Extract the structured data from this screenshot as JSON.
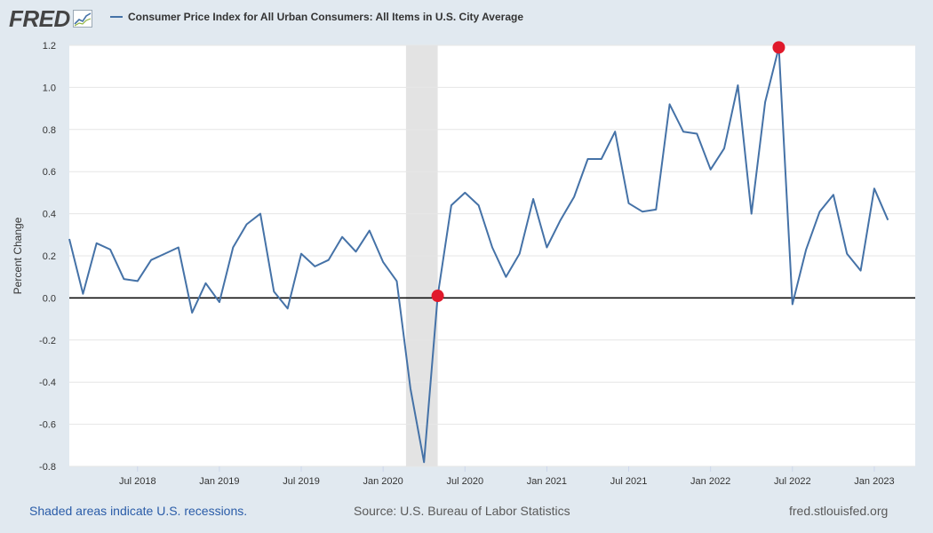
{
  "header": {
    "logo_text": "FRED",
    "logo_icon": "chart-trend-icon",
    "legend_label": "Consumer Price Index for All Urban Consumers: All Items in U.S. City Average"
  },
  "footer": {
    "recession_note": "Shaded areas indicate U.S. recessions.",
    "source": "Source: U.S. Bureau of Labor Statistics",
    "site": "fred.stlouisfed.org"
  },
  "colors": {
    "series": "#4572a7",
    "marker": "#e0192b",
    "recession": "#e3e3e3",
    "background": "#e1e9f0",
    "plot": "#ffffff"
  },
  "chart_data": {
    "type": "line",
    "ylabel": "Percent Change",
    "ylim": [
      -0.8,
      1.2
    ],
    "yticks": [
      "1.2",
      "1.0",
      "0.8",
      "0.6",
      "0.4",
      "0.2",
      "0.0",
      "-0.2",
      "-0.4",
      "-0.6",
      "-0.8"
    ],
    "xlim": [
      "2018-02",
      "2023-04"
    ],
    "xticks": [
      {
        "date": "2018-07",
        "label": "Jul 2018"
      },
      {
        "date": "2019-01",
        "label": "Jan 2019"
      },
      {
        "date": "2019-07",
        "label": "Jul 2019"
      },
      {
        "date": "2020-01",
        "label": "Jan 2020"
      },
      {
        "date": "2020-07",
        "label": "Jul 2020"
      },
      {
        "date": "2021-01",
        "label": "Jan 2021"
      },
      {
        "date": "2021-07",
        "label": "Jul 2021"
      },
      {
        "date": "2022-01",
        "label": "Jan 2022"
      },
      {
        "date": "2022-07",
        "label": "Jul 2022"
      },
      {
        "date": "2023-01",
        "label": "Jan 2023"
      }
    ],
    "grid": true,
    "legend": "top-left",
    "recession": {
      "start": "2020-03",
      "end": "2020-05"
    },
    "series": [
      {
        "name": "Consumer Price Index for All Urban Consumers: All Items in U.S. City Average",
        "x": [
          "2018-02",
          "2018-03",
          "2018-04",
          "2018-05",
          "2018-06",
          "2018-07",
          "2018-08",
          "2018-09",
          "2018-10",
          "2018-11",
          "2018-12",
          "2019-01",
          "2019-02",
          "2019-03",
          "2019-04",
          "2019-05",
          "2019-06",
          "2019-07",
          "2019-08",
          "2019-09",
          "2019-10",
          "2019-11",
          "2019-12",
          "2020-01",
          "2020-02",
          "2020-03",
          "2020-04",
          "2020-05",
          "2020-06",
          "2020-07",
          "2020-08",
          "2020-09",
          "2020-10",
          "2020-11",
          "2020-12",
          "2021-01",
          "2021-02",
          "2021-03",
          "2021-04",
          "2021-05",
          "2021-06",
          "2021-07",
          "2021-08",
          "2021-09",
          "2021-10",
          "2021-11",
          "2021-12",
          "2022-01",
          "2022-02",
          "2022-03",
          "2022-04",
          "2022-05",
          "2022-06",
          "2022-07",
          "2022-08",
          "2022-09",
          "2022-10",
          "2022-11",
          "2022-12",
          "2023-01",
          "2023-02"
        ],
        "y": [
          0.28,
          0.02,
          0.26,
          0.23,
          0.09,
          0.08,
          0.18,
          0.21,
          0.24,
          -0.07,
          0.07,
          -0.02,
          0.24,
          0.35,
          0.4,
          0.03,
          -0.05,
          0.21,
          0.15,
          0.18,
          0.29,
          0.22,
          0.32,
          0.17,
          0.08,
          -0.43,
          -0.78,
          0.01,
          0.44,
          0.5,
          0.44,
          0.24,
          0.1,
          0.21,
          0.47,
          0.24,
          0.37,
          0.48,
          0.66,
          0.66,
          0.79,
          0.45,
          0.41,
          0.42,
          0.92,
          0.79,
          0.78,
          0.61,
          0.71,
          1.01,
          0.4,
          0.93,
          1.19,
          -0.03,
          0.23,
          0.41,
          0.49,
          0.21,
          0.13,
          0.52,
          0.37
        ]
      }
    ],
    "markers": [
      {
        "date": "2020-05",
        "value": 0.01
      },
      {
        "date": "2022-06",
        "value": 1.19
      }
    ]
  }
}
